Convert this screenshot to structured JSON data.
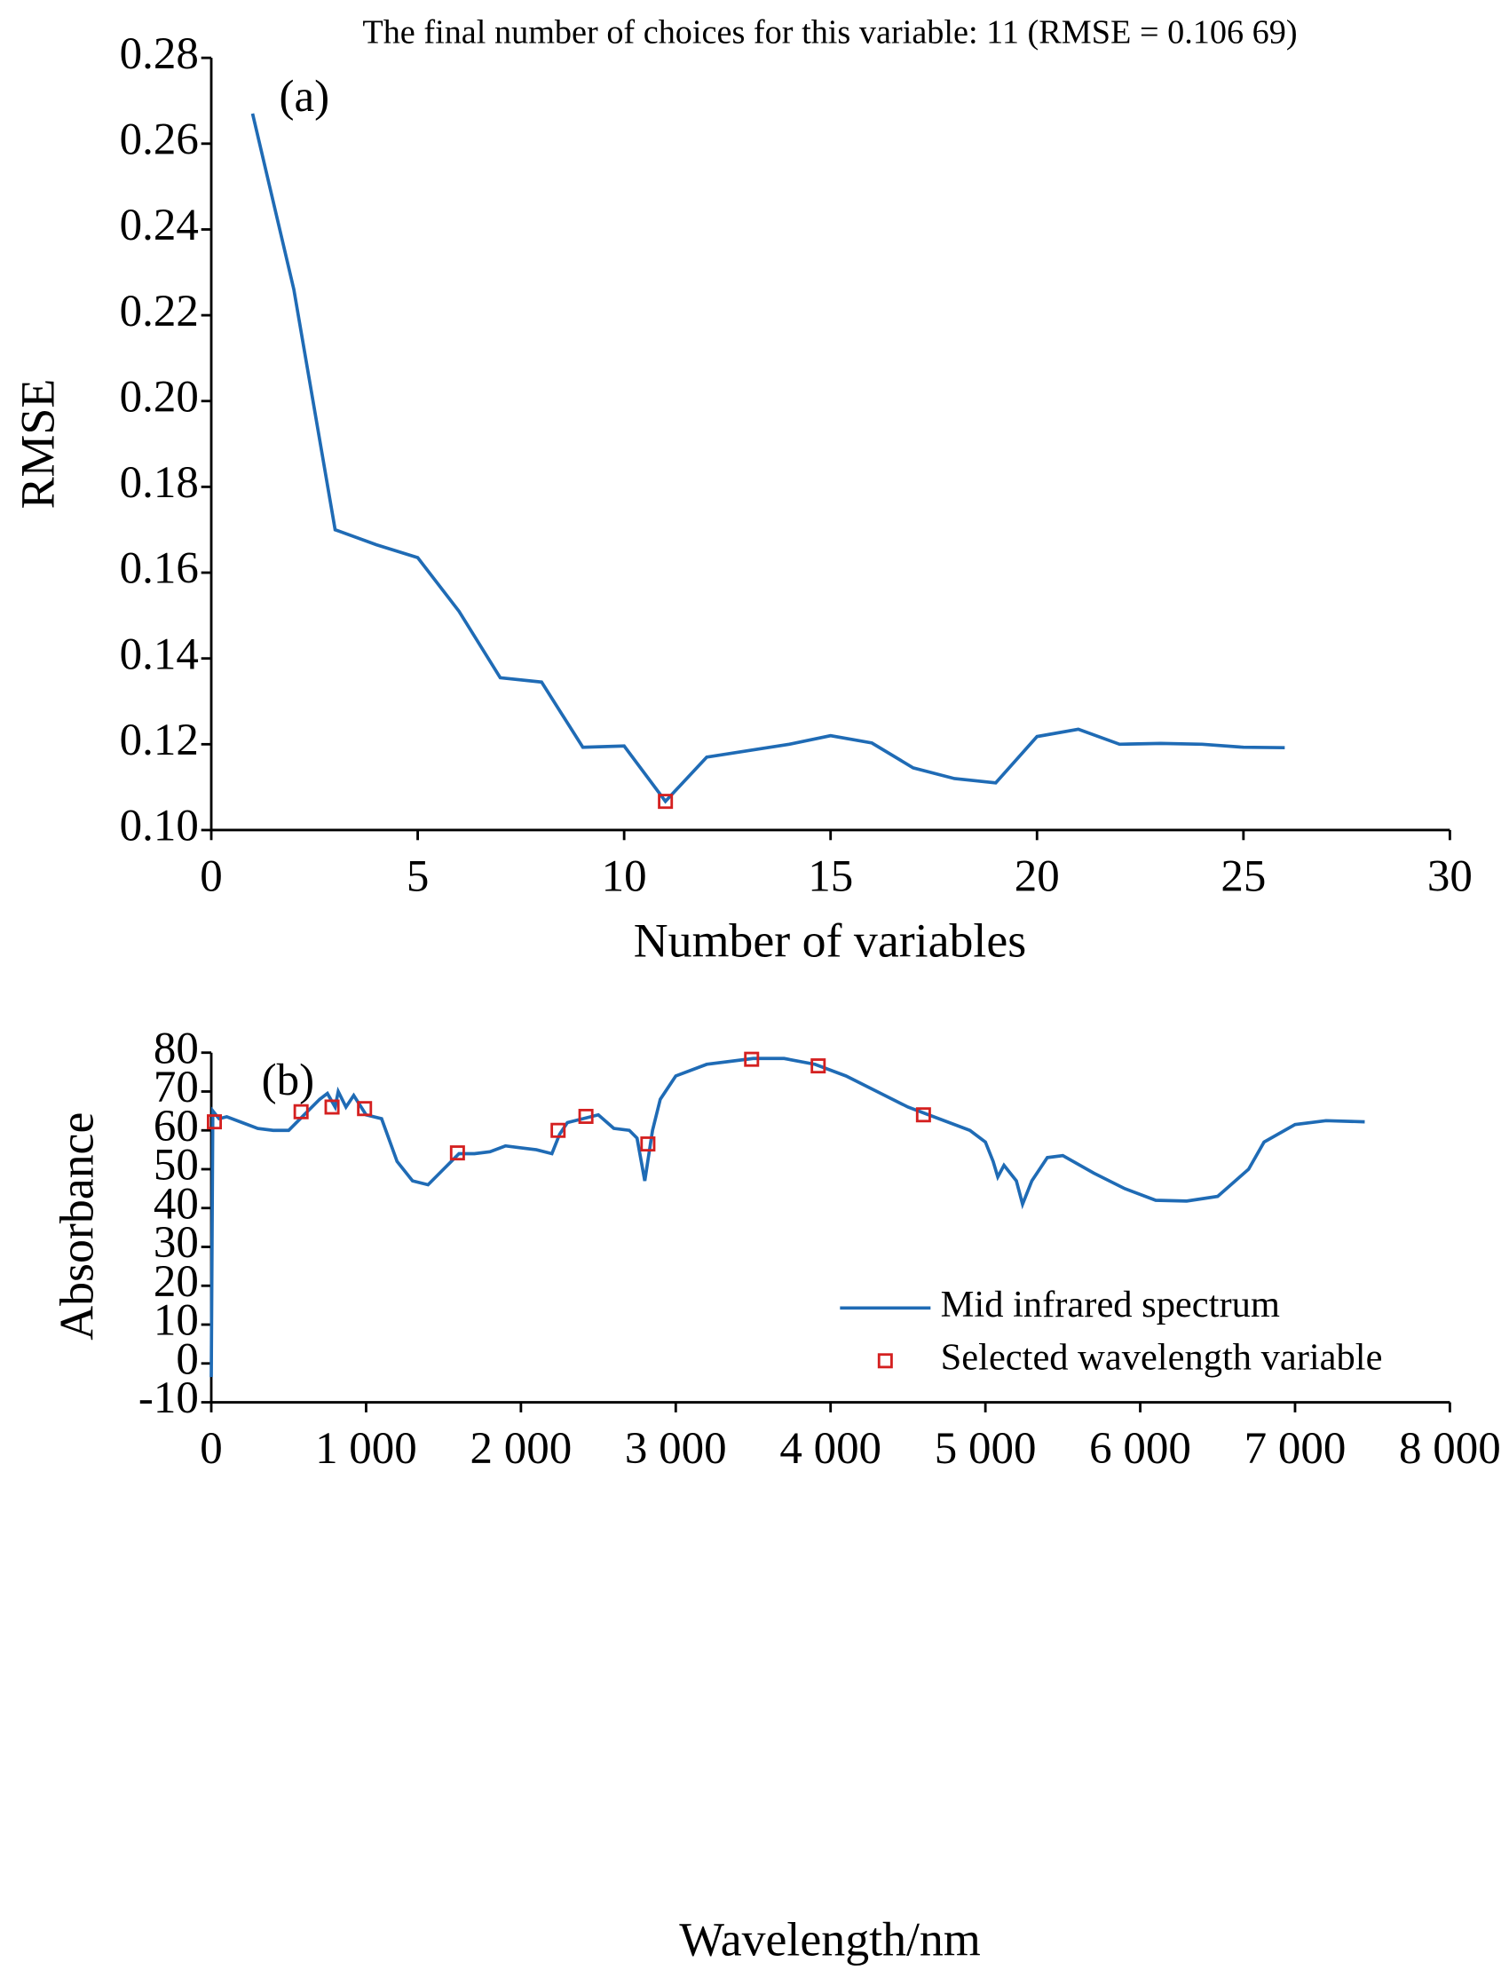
{
  "chart_data": [
    {
      "type": "line",
      "title": "The final number of choices for this variable: 11  (RMSE = 0.106 69)",
      "panel_label": "(a)",
      "x_label": "Number of variables",
      "y_label": "RMSE",
      "xlim": [
        0,
        30
      ],
      "xticks": [
        0,
        5,
        10,
        15,
        20,
        25,
        30
      ],
      "ylim": [
        0.1,
        0.28
      ],
      "yticks": [
        {
          "value": 0.1,
          "label": "0.10"
        },
        {
          "value": 0.12,
          "label": "0.12"
        },
        {
          "value": 0.14,
          "label": "0.14"
        },
        {
          "value": 0.16,
          "label": "0.16"
        },
        {
          "value": 0.18,
          "label": "0.18"
        },
        {
          "value": 0.2,
          "label": "0.20"
        },
        {
          "value": 0.22,
          "label": "0.22"
        },
        {
          "value": 0.24,
          "label": "0.24"
        },
        {
          "value": 0.26,
          "label": "0.26"
        },
        {
          "value": 0.28,
          "label": "0.28"
        }
      ],
      "series": [
        {
          "type": "line",
          "color": "#1f6bb5",
          "x": [
            1,
            2,
            3,
            4,
            5,
            6,
            7,
            8,
            9,
            10,
            11,
            12,
            13,
            14,
            15,
            16,
            17,
            18,
            19,
            20,
            21,
            22,
            23,
            24,
            25,
            26
          ],
          "values": [
            0.267,
            0.226,
            0.17,
            0.1665,
            0.1635,
            0.151,
            0.1355,
            0.1345,
            0.1193,
            0.1196,
            0.1067,
            0.117,
            0.1185,
            0.12,
            0.122,
            0.1203,
            0.1145,
            0.112,
            0.111,
            0.1218,
            0.1235,
            0.12,
            0.1202,
            0.12,
            0.1193,
            0.1192
          ]
        },
        {
          "type": "scatter",
          "color": "#d42020",
          "x": [
            11
          ],
          "values": [
            0.10669
          ]
        }
      ]
    },
    {
      "type": "line",
      "panel_label": "(b)",
      "x_label": "Wavelength/nm",
      "y_label": "Absorbance",
      "xlim": [
        0,
        8000
      ],
      "xticks": [
        0,
        {
          "value": 1000,
          "label": "1 000"
        },
        {
          "value": 2000,
          "label": "2 000"
        },
        {
          "value": 3000,
          "label": "3 000"
        },
        {
          "value": 4000,
          "label": "4 000"
        },
        {
          "value": 5000,
          "label": "5 000"
        },
        {
          "value": 6000,
          "label": "6 000"
        },
        {
          "value": 7000,
          "label": "7 000"
        },
        {
          "value": 8000,
          "label": "8 000"
        }
      ],
      "ylim": [
        -10,
        80
      ],
      "yticks": [
        -10,
        0,
        10,
        20,
        30,
        40,
        50,
        60,
        70,
        80
      ],
      "series": [
        {
          "type": "line",
          "name": "Mid infrared spectrum",
          "color": "#1f6bb5",
          "x": [
            0,
            10,
            50,
            100,
            200,
            300,
            400,
            500,
            600,
            700,
            750,
            800,
            820,
            870,
            920,
            1000,
            1100,
            1200,
            1300,
            1400,
            1500,
            1600,
            1700,
            1800,
            1900,
            2000,
            2100,
            2200,
            2250,
            2300,
            2400,
            2500,
            2600,
            2700,
            2750,
            2800,
            2850,
            2900,
            3000,
            3200,
            3500,
            3700,
            3900,
            4100,
            4300,
            4500,
            4700,
            4900,
            5000,
            5050,
            5080,
            5120,
            5200,
            5240,
            5300,
            5350,
            5400,
            5500,
            5700,
            5900,
            6100,
            6300,
            6500,
            6700,
            6800,
            7000,
            7200,
            7450
          ],
          "values": [
            -3.5,
            65,
            63,
            63.5,
            62,
            60.5,
            60,
            60,
            64,
            68,
            69.5,
            66,
            70,
            66,
            69,
            64,
            63,
            52,
            47,
            46,
            50,
            54,
            54,
            54.5,
            56,
            55.5,
            55,
            54,
            59,
            62,
            63,
            64,
            60.5,
            60,
            58,
            47,
            60,
            68,
            74,
            77,
            78.5,
            78.5,
            77,
            74,
            70,
            66,
            63,
            60,
            57,
            52,
            48,
            51,
            47,
            41,
            47,
            50,
            53,
            53.5,
            49,
            45,
            42,
            41.8,
            43,
            50,
            57,
            61.5,
            62.5,
            62.2
          ]
        },
        {
          "type": "scatter",
          "name": "Selected wavelength variable",
          "color": "#d42020",
          "x": [
            20,
            580,
            780,
            990,
            1590,
            2240,
            2420,
            2820,
            3490,
            3920,
            4600
          ],
          "values": [
            62.2,
            64.8,
            66,
            65.6,
            54.2,
            60,
            63.6,
            56.5,
            78.3,
            76.6,
            64
          ]
        }
      ]
    }
  ]
}
